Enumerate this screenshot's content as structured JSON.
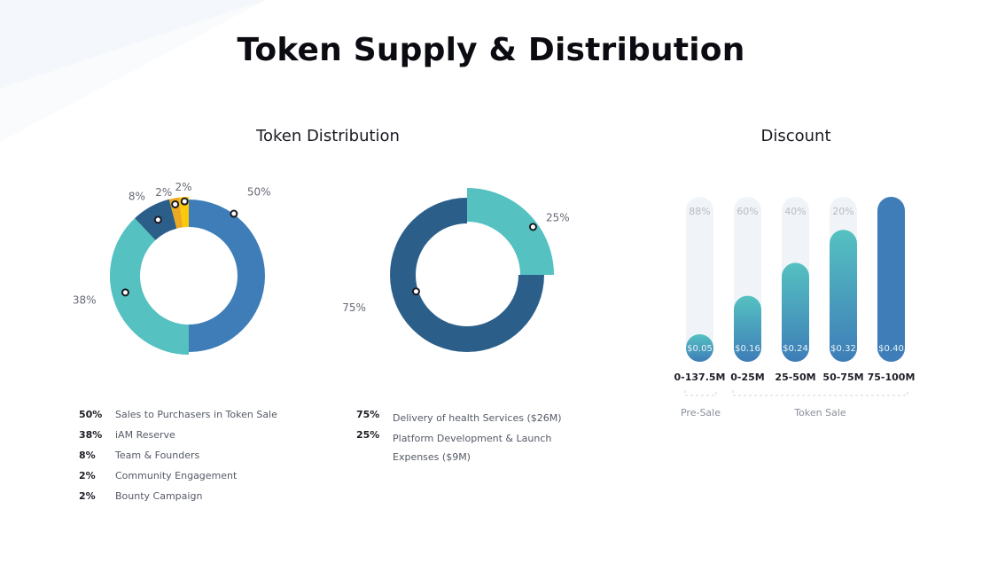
{
  "page": {
    "title": "Token Supply & Distribution"
  },
  "colors": {
    "teal": "#55c1c1",
    "blue": "#3e7db8",
    "navy": "#2b5f8a",
    "orange": "#eba820",
    "yellow": "#fcc80c",
    "track": "#f0f4f8"
  },
  "sections": {
    "distribution_title": "Token Distribution",
    "discount_title": "Discount"
  },
  "chart_data": [
    {
      "type": "pie",
      "variant": "donut",
      "labels": [
        "Sales to Purchasers in Token Sale",
        "iAM Reserve",
        "Team & Founders",
        "Community Engagement",
        "Bounty Campaign"
      ],
      "values": [
        50,
        38,
        8,
        2,
        2
      ],
      "value_labels": [
        "50%",
        "38%",
        "8%",
        "2%",
        "2%"
      ],
      "colors": [
        "#3e7db8",
        "#55c1c1",
        "#2b5f8a",
        "#eba820",
        "#fcc80c"
      ]
    },
    {
      "type": "pie",
      "variant": "donut",
      "labels": [
        "Delivery of health Services ($26M)",
        "Platform Development & Launch Expenses ($9M)"
      ],
      "values": [
        75,
        25
      ],
      "value_labels": [
        "75%",
        "25%"
      ],
      "colors": [
        "#2b5f8a",
        "#55c1c1"
      ]
    },
    {
      "type": "bar",
      "title": "Discount",
      "categories": [
        "0-137.5M",
        "0-25M",
        "25-50M",
        "50-75M",
        "75-100M"
      ],
      "values": [
        0.05,
        0.16,
        0.24,
        0.32,
        0.4
      ],
      "value_labels": [
        "$0.05",
        "$0.16",
        "$0.24",
        "$0.32",
        "$0.40"
      ],
      "discounts": [
        "88%",
        "60%",
        "40%",
        "20%",
        ""
      ],
      "groups": [
        {
          "label": "Pre-Sale",
          "categories": [
            "0-137.5M"
          ]
        },
        {
          "label": "Token Sale",
          "categories": [
            "0-25M",
            "25-50M",
            "50-75M",
            "75-100M"
          ]
        }
      ],
      "ylim": [
        0,
        0.4
      ]
    }
  ],
  "legend1": [
    {
      "pct": "50%",
      "label": "Sales to Purchasers in Token Sale"
    },
    {
      "pct": "38%",
      "label": "iAM Reserve"
    },
    {
      "pct": "8%",
      "label": "Team & Founders"
    },
    {
      "pct": "2%",
      "label": "Community Engagement"
    },
    {
      "pct": "2%",
      "label": "Bounty Campaign"
    }
  ],
  "legend2": [
    {
      "pct": "75%",
      "label": "Delivery of health Services ($26M)"
    },
    {
      "pct": "25%",
      "label": "Platform Development & Launch Expenses ($9M)"
    }
  ]
}
